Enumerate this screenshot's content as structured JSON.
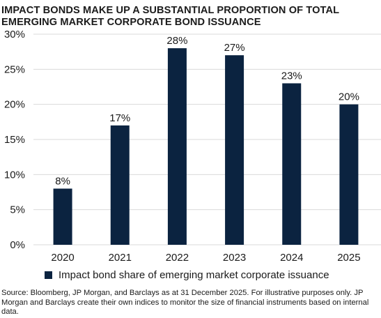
{
  "title": "IMPACT BONDS MAKE UP A SUBSTANTIAL PROPORTION OF TOTAL EMERGING MARKET CORPORATE BOND ISSUANCE",
  "source": "Source: Bloomberg, JP Morgan, and Barclays as at 31 December 2025. For illustrative purposes only. JP Morgan and Barclays create their own indices to monitor the size of financial instruments based on internal data.",
  "colors": {
    "bar": "#0b2340",
    "grid": "#d9d9d9",
    "text": "#1a1a1a"
  },
  "chart_data": {
    "type": "bar",
    "categories": [
      "2020",
      "2021",
      "2022",
      "2023",
      "2024",
      "2025"
    ],
    "series": [
      {
        "name": "Impact bond share of emerging market corporate issuance",
        "values": [
          8,
          17,
          28,
          27,
          23,
          20
        ]
      }
    ],
    "data_labels": [
      "8%",
      "17%",
      "28%",
      "27%",
      "23%",
      "20%"
    ],
    "y_ticks": [
      "0%",
      "5%",
      "10%",
      "15%",
      "20%",
      "25%",
      "30%"
    ],
    "ylim": [
      0,
      30
    ],
    "grid": true,
    "legend_position": "bottom-left"
  }
}
